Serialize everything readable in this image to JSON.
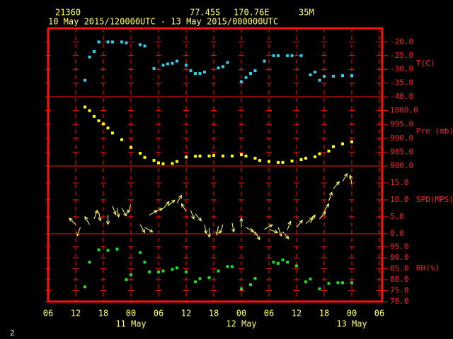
{
  "header": {
    "station": "21360",
    "lat": "77.45S",
    "lon": "170.76E",
    "elev": "35M",
    "period": "10 May 2015/120000UTC - 13 May 2015/000000UTC"
  },
  "footer": "2",
  "time_axis": {
    "xlim": [
      "2015-05-10 06:00",
      "2015-05-13 06:00"
    ],
    "xticks": [
      {
        "value": "2015-05-10 06:00",
        "label": "06"
      },
      {
        "value": "2015-05-10 12:00",
        "label": "12"
      },
      {
        "value": "2015-05-10 18:00",
        "label": "18"
      },
      {
        "value": "2015-05-11 00:00",
        "label": "00"
      },
      {
        "value": "2015-05-11 06:00",
        "label": "06"
      },
      {
        "value": "2015-05-11 12:00",
        "label": "12"
      },
      {
        "value": "2015-05-11 18:00",
        "label": "18"
      },
      {
        "value": "2015-05-12 00:00",
        "label": "00"
      },
      {
        "value": "2015-05-12 06:00",
        "label": "06"
      },
      {
        "value": "2015-05-12 12:00",
        "label": "12"
      },
      {
        "value": "2015-05-12 18:00",
        "label": "18"
      },
      {
        "value": "2015-05-13 00:00",
        "label": "00"
      },
      {
        "value": "2015-05-13 06:00",
        "label": "06"
      }
    ],
    "day_labels": [
      {
        "value": "2015-05-11 00:00",
        "label": "11 May"
      },
      {
        "value": "2015-05-12 00:00",
        "label": "12 May"
      },
      {
        "value": "2015-05-13 00:00",
        "label": "13 May"
      }
    ]
  },
  "chart_data": [
    {
      "type": "scatter",
      "y_label": "T(C)",
      "color": "#33ccee",
      "ylim": [
        -40,
        -15
      ],
      "yticks": [
        {
          "value": -20,
          "label": "-20.0"
        },
        {
          "value": -25,
          "label": "-25.0"
        },
        {
          "value": -30,
          "label": "-30.0"
        },
        {
          "value": -35,
          "label": "-35.0"
        },
        {
          "value": -40,
          "label": "-40.0"
        }
      ],
      "x": [
        "2015-05-10 14:00",
        "2015-05-10 15:00",
        "2015-05-10 16:00",
        "2015-05-10 17:00",
        "2015-05-10 19:00",
        "2015-05-10 20:00",
        "2015-05-10 22:00",
        "2015-05-10 23:00",
        "2015-05-11 02:00",
        "2015-05-11 03:00",
        "2015-05-11 05:00",
        "2015-05-11 07:00",
        "2015-05-11 08:00",
        "2015-05-11 09:00",
        "2015-05-11 10:00",
        "2015-05-11 12:00",
        "2015-05-11 13:00",
        "2015-05-11 14:00",
        "2015-05-11 15:00",
        "2015-05-11 16:00",
        "2015-05-11 19:00",
        "2015-05-11 20:00",
        "2015-05-11 21:00",
        "2015-05-12 00:00",
        "2015-05-12 01:00",
        "2015-05-12 02:00",
        "2015-05-12 03:00",
        "2015-05-12 05:00",
        "2015-05-12 07:00",
        "2015-05-12 08:00",
        "2015-05-12 10:00",
        "2015-05-12 11:00",
        "2015-05-12 13:00",
        "2015-05-12 15:00",
        "2015-05-12 16:00",
        "2015-05-12 17:00",
        "2015-05-12 18:00",
        "2015-05-12 20:00",
        "2015-05-12 22:00",
        "2015-05-13 00:00"
      ],
      "values": [
        -34,
        -25.5,
        -23.5,
        -20,
        -20,
        -20,
        -20,
        -20.3,
        -21,
        -21.5,
        -29.7,
        -28.5,
        -28,
        -27.8,
        -27,
        -28.5,
        -30.5,
        -31.5,
        -31.5,
        -31,
        -29.5,
        -29,
        -27.5,
        -34.5,
        -33,
        -31.5,
        -30.5,
        -27,
        -25,
        -25,
        -25,
        -25,
        -25,
        -32,
        -31,
        -34,
        -32.5,
        -32.5,
        -32.3,
        -32.3
      ]
    },
    {
      "type": "scatter",
      "y_label": "Pre (mb)",
      "color": "#ffff00",
      "ylim": [
        980,
        1005
      ],
      "yticks": [
        {
          "value": 1000,
          "label": "1000.0"
        },
        {
          "value": 995,
          "label": "995.0"
        },
        {
          "value": 990,
          "label": "990.0"
        },
        {
          "value": 985,
          "label": "985.0"
        },
        {
          "value": 980,
          "label": "980.0"
        }
      ],
      "x": [
        "2015-05-10 14:00",
        "2015-05-10 15:00",
        "2015-05-10 16:00",
        "2015-05-10 17:00",
        "2015-05-10 18:00",
        "2015-05-10 19:00",
        "2015-05-10 20:00",
        "2015-05-10 22:00",
        "2015-05-11 00:00",
        "2015-05-11 02:00",
        "2015-05-11 03:00",
        "2015-05-11 05:00",
        "2015-05-11 06:00",
        "2015-05-11 07:00",
        "2015-05-11 09:00",
        "2015-05-11 10:00",
        "2015-05-11 12:00",
        "2015-05-11 14:00",
        "2015-05-11 15:00",
        "2015-05-11 17:00",
        "2015-05-11 18:00",
        "2015-05-11 20:00",
        "2015-05-11 22:00",
        "2015-05-12 00:00",
        "2015-05-12 01:00",
        "2015-05-12 03:00",
        "2015-05-12 04:00",
        "2015-05-12 06:00",
        "2015-05-12 08:00",
        "2015-05-12 09:00",
        "2015-05-12 11:00",
        "2015-05-12 13:00",
        "2015-05-12 14:00",
        "2015-05-12 16:00",
        "2015-05-12 17:00",
        "2015-05-12 19:00",
        "2015-05-12 20:00",
        "2015-05-12 22:00",
        "2015-05-13 00:00"
      ],
      "values": [
        1001.3,
        1000,
        997.9,
        996.3,
        995.2,
        993.7,
        991.9,
        989.5,
        986.7,
        984.6,
        983.1,
        982,
        981.1,
        980.8,
        980.9,
        981.6,
        983.2,
        983.5,
        983.6,
        983.6,
        983.8,
        983.6,
        983.6,
        984.1,
        983.6,
        982.8,
        982,
        981.6,
        981.3,
        981.3,
        981.8,
        982.3,
        982.8,
        983.3,
        984.4,
        985.4,
        987,
        988,
        988.7
      ]
    },
    {
      "type": "vector",
      "y_label": "SPD(MPS)",
      "color": "#ffff66",
      "ylim": [
        0,
        20
      ],
      "yticks": [
        {
          "value": 15,
          "label": "15.0"
        },
        {
          "value": 10,
          "label": "10.0"
        },
        {
          "value": 5,
          "label": "5.0"
        },
        {
          "value": 0,
          "label": "0.0"
        }
      ],
      "x": [
        "2015-05-10 12:00",
        "2015-05-10 13:00",
        "2015-05-10 15:00",
        "2015-05-10 16:00",
        "2015-05-10 17:00",
        "2015-05-10 19:00",
        "2015-05-10 20:00",
        "2015-05-10 21:00",
        "2015-05-10 22:00",
        "2015-05-11 00:00",
        "2015-05-11 02:00",
        "2015-05-11 03:00",
        "2015-05-11 04:00",
        "2015-05-11 05:00",
        "2015-05-11 07:00",
        "2015-05-11 08:00",
        "2015-05-11 10:00",
        "2015-05-11 12:00",
        "2015-05-11 13:00",
        "2015-05-11 14:00",
        "2015-05-11 16:00",
        "2015-05-11 17:00",
        "2015-05-11 19:00",
        "2015-05-11 20:00",
        "2015-05-11 22:00",
        "2015-05-12 00:00",
        "2015-05-12 01:00",
        "2015-05-12 02:00",
        "2015-05-12 03:00",
        "2015-05-12 05:00",
        "2015-05-12 06:00",
        "2015-05-12 08:00",
        "2015-05-12 09:00",
        "2015-05-12 10:00",
        "2015-05-12 12:00",
        "2015-05-12 14:00",
        "2015-05-12 15:00",
        "2015-05-12 17:00",
        "2015-05-12 18:00",
        "2015-05-12 19:00",
        "2015-05-12 20:00",
        "2015-05-12 22:00",
        "2015-05-13 00:00"
      ],
      "values": [
        2.7,
        1.9,
        2.7,
        4.4,
        6.5,
        5.5,
        8.2,
        7.6,
        7.6,
        8.7,
        2.7,
        1.9,
        5.5,
        6.5,
        7.4,
        8.2,
        9,
        6.5,
        6.9,
        5.9,
        2.7,
        1.7,
        2.3,
        2.7,
        3.2,
        1.9,
        1.9,
        1.7,
        0.6,
        1.3,
        1.3,
        1.9,
        0.6,
        1.1,
        1.9,
        3,
        3.2,
        4.4,
        6.5,
        9.7,
        13.3,
        15.4,
        14.6
      ],
      "directions": [
        315,
        200,
        330,
        20,
        170,
        180,
        160,
        170,
        150,
        200,
        150,
        120,
        60,
        70,
        40,
        50,
        30,
        330,
        160,
        140,
        170,
        180,
        190,
        200,
        170,
        0,
        120,
        140,
        150,
        60,
        110,
        160,
        140,
        20,
        40,
        50,
        30,
        40,
        30,
        20,
        40,
        30,
        350
      ]
    },
    {
      "type": "scatter",
      "y_label": "RH(%)",
      "color": "#22dd22",
      "ylim": [
        70,
        101
      ],
      "yticks": [
        {
          "value": 95,
          "label": "95.0"
        },
        {
          "value": 90,
          "label": "90.0"
        },
        {
          "value": 85,
          "label": "85.0"
        },
        {
          "value": 80,
          "label": "80.0"
        },
        {
          "value": 75,
          "label": "75.0"
        },
        {
          "value": 70,
          "label": "70.0"
        }
      ],
      "x": [
        "2015-05-10 14:00",
        "2015-05-10 15:00",
        "2015-05-10 17:00",
        "2015-05-10 19:00",
        "2015-05-10 21:00",
        "2015-05-10 23:00",
        "2015-05-11 00:00",
        "2015-05-11 02:00",
        "2015-05-11 03:00",
        "2015-05-11 04:00",
        "2015-05-11 06:00",
        "2015-05-11 07:00",
        "2015-05-11 09:00",
        "2015-05-11 10:00",
        "2015-05-11 12:00",
        "2015-05-11 14:00",
        "2015-05-11 15:00",
        "2015-05-11 17:00",
        "2015-05-11 19:00",
        "2015-05-11 21:00",
        "2015-05-11 22:00",
        "2015-05-12 00:00",
        "2015-05-12 02:00",
        "2015-05-12 03:00",
        "2015-05-12 07:00",
        "2015-05-12 08:00",
        "2015-05-12 09:00",
        "2015-05-12 10:00",
        "2015-05-12 12:00",
        "2015-05-12 14:00",
        "2015-05-12 15:00",
        "2015-05-12 17:00",
        "2015-05-12 19:00",
        "2015-05-12 21:00",
        "2015-05-12 22:00",
        "2015-05-13 00:00"
      ],
      "values": [
        76.7,
        88,
        93.7,
        93.4,
        94,
        80,
        82.2,
        92.4,
        88,
        83.5,
        83.5,
        84,
        84.7,
        85.4,
        83.5,
        79,
        80.5,
        80.9,
        84,
        86,
        86,
        75.8,
        77.7,
        80.6,
        88,
        87.5,
        89,
        88,
        86.3,
        79,
        80.3,
        75.8,
        78.3,
        78.6,
        78.6,
        78.6
      ]
    }
  ]
}
